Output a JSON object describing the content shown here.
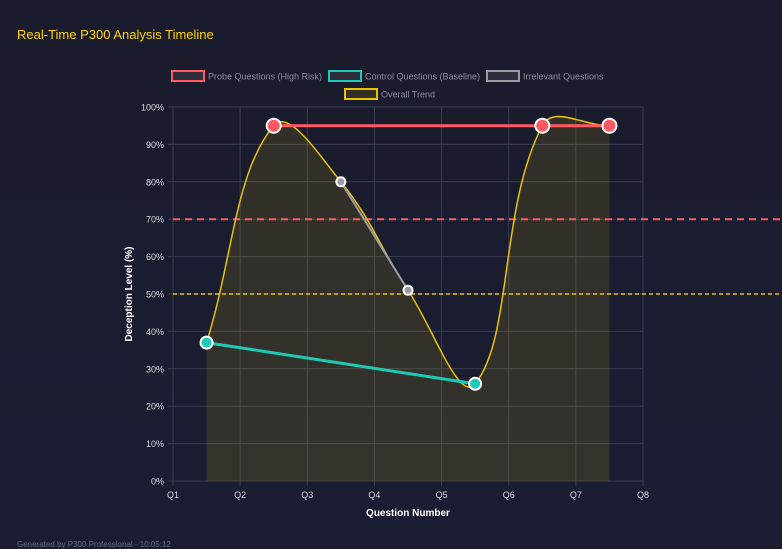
{
  "title": "Real-Time P300 Analysis Timeline",
  "footer": "Generated by P300 Professional - 10:05:12",
  "chart_data": {
    "type": "line",
    "xlabel": "Question Number",
    "ylabel": "Deception Level (%)",
    "x_ticks": [
      "Q1",
      "Q2",
      "Q3",
      "Q4",
      "Q5",
      "Q6",
      "Q7",
      "Q8"
    ],
    "y_ticks": [
      "0%",
      "10%",
      "20%",
      "30%",
      "40%",
      "50%",
      "60%",
      "70%",
      "80%",
      "90%",
      "100%"
    ],
    "ylim": [
      0,
      100
    ],
    "xlim": [
      1,
      8
    ],
    "grid": true,
    "legend_position": "top",
    "series": [
      {
        "name": "Probe Questions (High Risk)",
        "color": "#ff5a63",
        "x": [
          2.5,
          6.5,
          7.5
        ],
        "y": [
          95,
          95,
          95
        ]
      },
      {
        "name": "Control Questions (Baseline)",
        "color": "#1ec9b6",
        "x": [
          1.5,
          5.5
        ],
        "y": [
          37,
          26
        ]
      },
      {
        "name": "Irrelevant Questions",
        "color": "#9a9ca6",
        "x": [
          3.5,
          4.5
        ],
        "y": [
          80,
          51
        ]
      },
      {
        "name": "Overall Trend",
        "color": "#e8c400",
        "x": [
          1.5,
          2.5,
          3.5,
          4.5,
          5.5,
          6.5,
          7.5
        ],
        "y": [
          37,
          95,
          80,
          51,
          26,
          95,
          95
        ]
      }
    ],
    "thresholds": [
      {
        "value": 70,
        "color": "#ff5a63"
      },
      {
        "value": 50,
        "color": "#e8c400"
      }
    ]
  }
}
